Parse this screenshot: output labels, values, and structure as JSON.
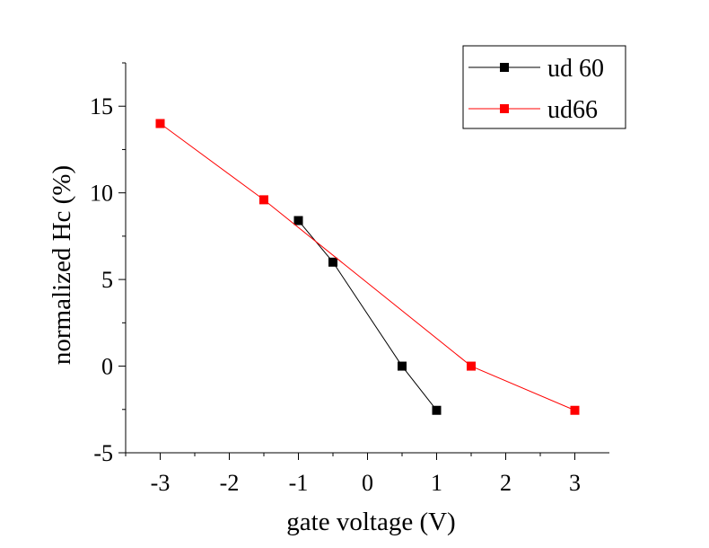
{
  "chart_data": {
    "type": "line",
    "xlabel": "gate voltage (V)",
    "ylabel": "normalized Hc (%)",
    "xlim": [
      -3.5,
      3.5
    ],
    "ylim": [
      -5,
      17.5
    ],
    "xticks": [
      -3,
      -2,
      -1,
      0,
      1,
      2,
      3
    ],
    "yticks": [
      -5,
      0,
      5,
      10,
      15
    ],
    "legend_position": "top-right",
    "grid": false,
    "series": [
      {
        "name": "ud 60",
        "color": "#000000",
        "marker": "square",
        "x": [
          -1,
          -0.5,
          0.5,
          1
        ],
        "y": [
          8.4,
          6.0,
          0.0,
          -2.55
        ]
      },
      {
        "name": "ud66",
        "color": "#ff0000",
        "marker": "square",
        "x": [
          -3,
          -1.5,
          1.5,
          3
        ],
        "y": [
          14.0,
          9.6,
          0.0,
          -2.55
        ]
      }
    ]
  }
}
